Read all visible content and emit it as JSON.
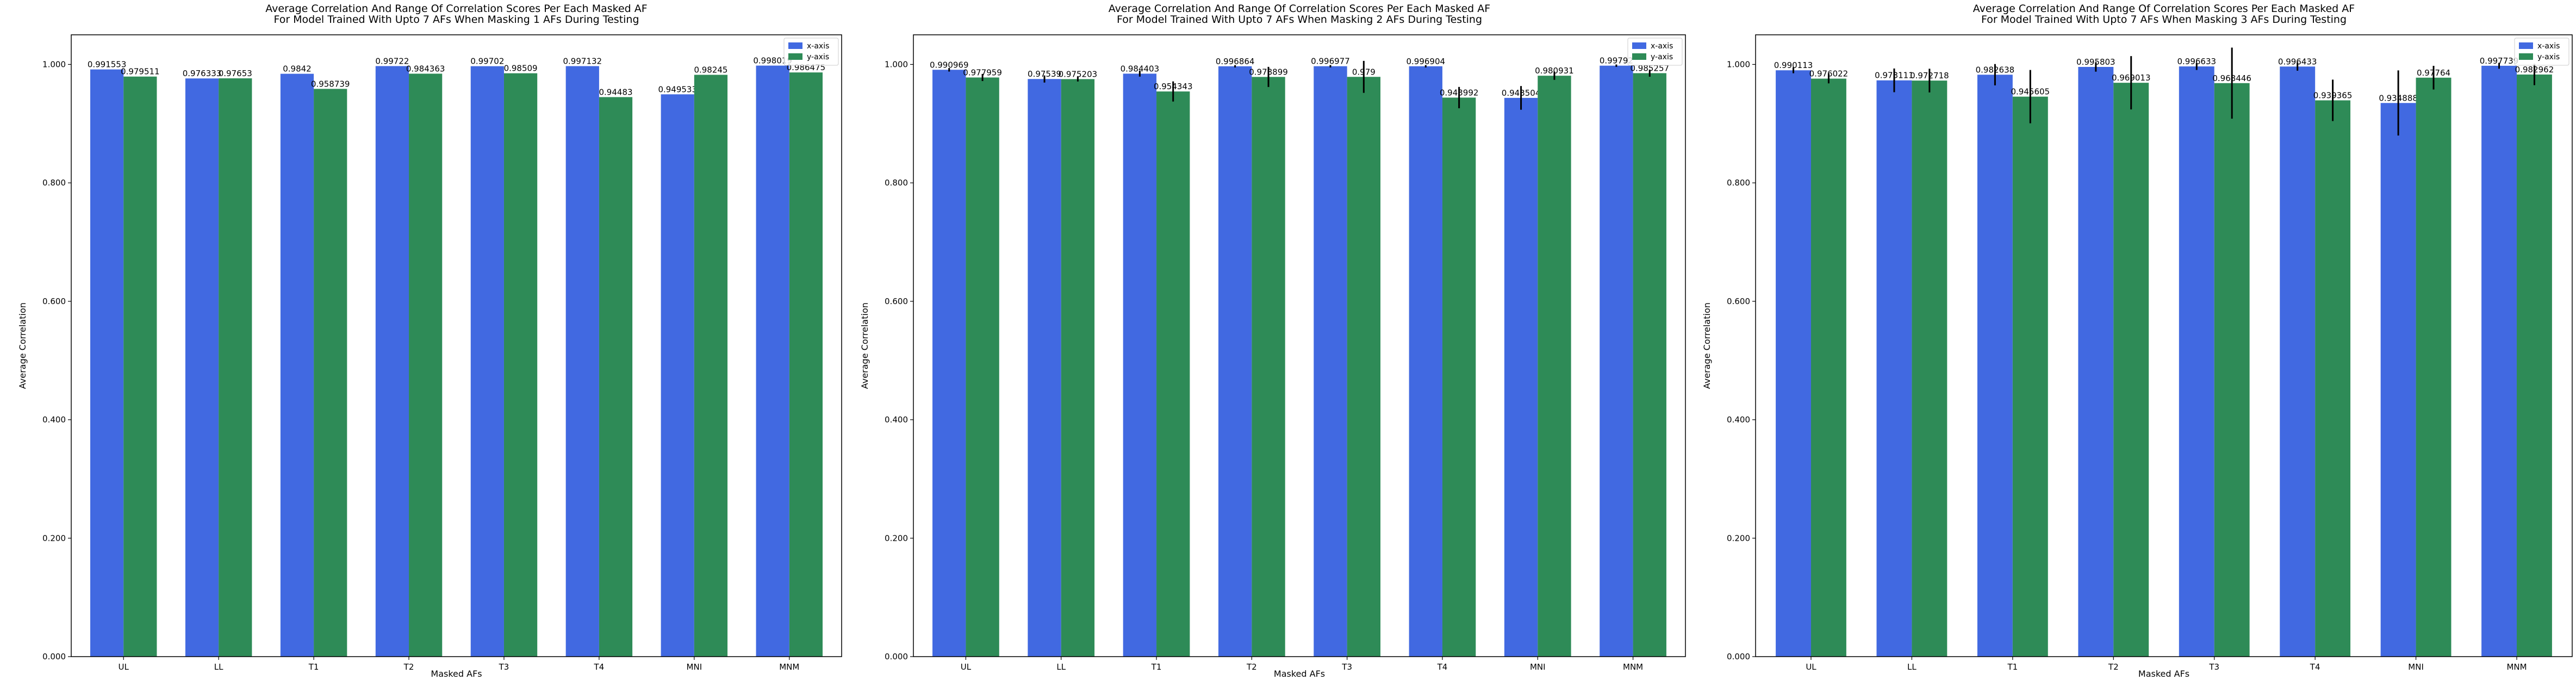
{
  "colors": {
    "x_axis": "#4169E1",
    "y_axis": "#2E8B57",
    "error_bar": "#000000"
  },
  "chart_data": [
    {
      "type": "bar",
      "title": [
        "Average Correlation And Range Of Correlation Scores Per Each Masked AF",
        "For Model Trained With Upto 7 AFs When Masking 1 AFs During Testing"
      ],
      "xlabel": "Masked AFs",
      "ylabel": "Average Correlation",
      "ylim": [
        0,
        1.05
      ],
      "yticks": [
        "0.000",
        "0.200",
        "0.400",
        "0.600",
        "0.800",
        "1.000"
      ],
      "categories": [
        "UL",
        "LL",
        "T1",
        "T2",
        "T3",
        "T4",
        "MNI",
        "MNM"
      ],
      "legend_position": "top-right",
      "series": [
        {
          "name": "x-axis",
          "values": [
            0.991553,
            0.976333,
            0.9842,
            0.99722,
            0.99702,
            0.997132,
            0.949533,
            0.998019
          ],
          "labels": [
            "0.991553",
            "0.976333",
            "0.9842",
            "0.99722",
            "0.99702",
            "0.997132",
            "0.949533",
            "0.998019"
          ],
          "errors": [
            0,
            0,
            0,
            0,
            0,
            0,
            0,
            0
          ]
        },
        {
          "name": "y-axis",
          "values": [
            0.979511,
            0.97653,
            0.958739,
            0.984363,
            0.98509,
            0.94483,
            0.98245,
            0.986475
          ],
          "labels": [
            "0.979511",
            "0.97653",
            "0.958739",
            "0.984363",
            "0.98509",
            "0.94483",
            "0.98245",
            "0.986475"
          ],
          "errors": [
            0,
            0,
            0,
            0,
            0,
            0,
            0,
            0
          ]
        }
      ]
    },
    {
      "type": "bar",
      "title": [
        "Average Correlation And Range Of Correlation Scores Per Each Masked AF",
        "For Model Trained With Upto 7 AFs When Masking 2 AFs During Testing"
      ],
      "xlabel": "Masked AFs",
      "ylabel": "Average Correlation",
      "ylim": [
        0,
        1.05
      ],
      "yticks": [
        "0.000",
        "0.200",
        "0.400",
        "0.600",
        "0.800",
        "1.000"
      ],
      "categories": [
        "UL",
        "LL",
        "T1",
        "T2",
        "T3",
        "T4",
        "MNI",
        "MNM"
      ],
      "legend_position": "top-right",
      "series": [
        {
          "name": "x-axis",
          "values": [
            0.990969,
            0.97539,
            0.984403,
            0.996864,
            0.996977,
            0.996904,
            0.943504,
            0.99792
          ],
          "labels": [
            "0.990969",
            "0.97539",
            "0.984403",
            "0.996864",
            "0.996977",
            "0.996904",
            "0.943504",
            "0.99792"
          ],
          "errors": [
            0.003,
            0.006,
            0.005,
            0.002,
            0.002,
            0.002,
            0.02,
            0.002
          ]
        },
        {
          "name": "y-axis",
          "values": [
            0.977959,
            0.975203,
            0.954343,
            0.978899,
            0.979,
            0.943992,
            0.980931,
            0.985257
          ],
          "labels": [
            "0.977959",
            "0.975203",
            "0.954343",
            "0.978899",
            "0.979",
            "0.943992",
            "0.980931",
            "0.985257"
          ],
          "errors": [
            0.006,
            0.004,
            0.017,
            0.017,
            0.027,
            0.018,
            0.007,
            0.006
          ]
        }
      ]
    },
    {
      "type": "bar",
      "title": [
        "Average Correlation And Range Of Correlation Scores Per Each Masked AF",
        "For Model Trained With Upto 7 AFs When Masking 3 AFs During Testing"
      ],
      "xlabel": "Masked AFs",
      "ylabel": "Average Correlation",
      "ylim": [
        0,
        1.05
      ],
      "yticks": [
        "0.000",
        "0.200",
        "0.400",
        "0.600",
        "0.800",
        "1.000"
      ],
      "categories": [
        "UL",
        "LL",
        "T1",
        "T2",
        "T3",
        "T4",
        "MNI",
        "MNM"
      ],
      "legend_position": "top-right",
      "series": [
        {
          "name": "x-axis",
          "values": [
            0.990113,
            0.973111,
            0.982638,
            0.995803,
            0.996633,
            0.996433,
            0.934888,
            0.997739
          ],
          "labels": [
            "0.990113",
            "0.973111",
            "0.982638",
            "0.995803",
            "0.996633",
            "0.996433",
            "0.934888",
            "0.997739"
          ],
          "errors": [
            0.005,
            0.02,
            0.018,
            0.008,
            0.006,
            0.007,
            0.055,
            0.005
          ]
        },
        {
          "name": "y-axis",
          "values": [
            0.976022,
            0.972718,
            0.945605,
            0.969013,
            0.968446,
            0.939365,
            0.97764,
            0.982962
          ],
          "labels": [
            "0.976022",
            "0.972718",
            "0.945605",
            "0.969013",
            "0.968446",
            "0.939365",
            "0.97764",
            "0.982962"
          ],
          "errors": [
            0.008,
            0.02,
            0.045,
            0.045,
            0.06,
            0.035,
            0.02,
            0.018
          ]
        }
      ]
    }
  ]
}
